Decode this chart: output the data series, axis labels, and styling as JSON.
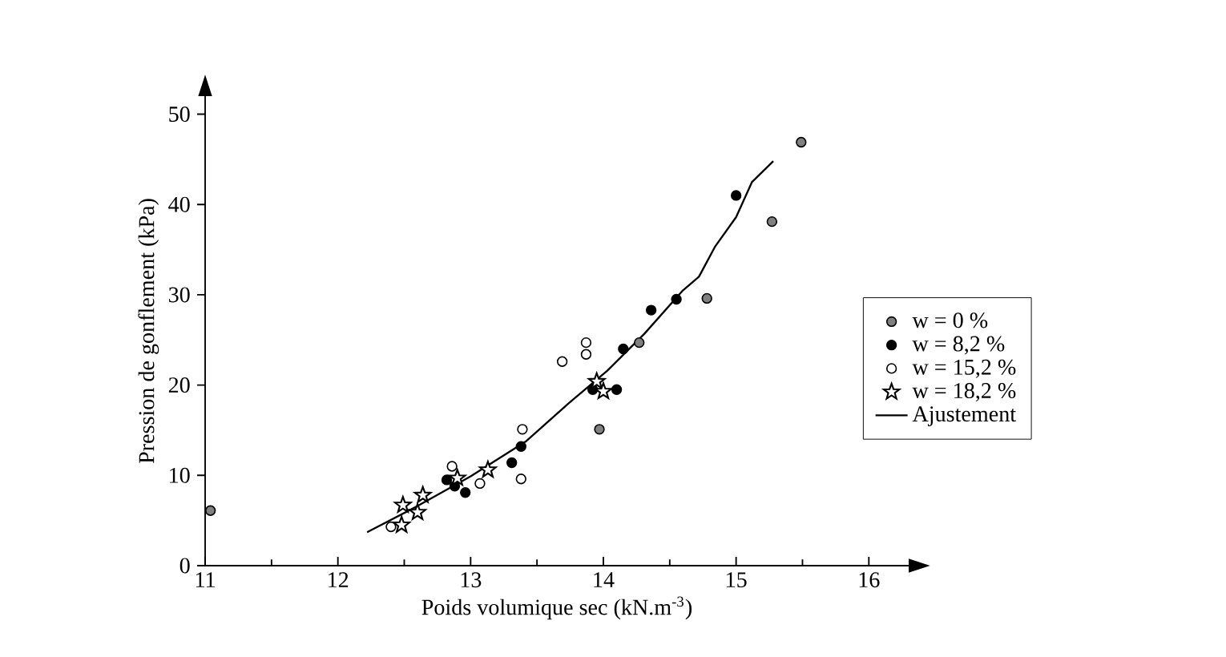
{
  "chart_data": {
    "type": "scatter",
    "xlabel": "Poids volumique sec (kN.m$^{-3}$)",
    "ylabel": "Pression de gonflement (kPa)",
    "xlim": [
      11,
      16.3
    ],
    "xticks": [
      11,
      12,
      13,
      14,
      15,
      16
    ],
    "ylim": [
      0,
      52
    ],
    "yticks": [
      0,
      10,
      20,
      30,
      40,
      50
    ],
    "legend": "right",
    "grid": false,
    "series": [
      {
        "name": "w = 0 %",
        "color": "#808080",
        "marker": "circle",
        "x": [
          11.04,
          13.97,
          14.27,
          14.78,
          15.27,
          15.49
        ],
        "values": [
          6.1,
          15.1,
          24.7,
          29.6,
          38.1,
          46.9
        ]
      },
      {
        "name": "w = 8,2 %",
        "color": "#000000",
        "marker": "circle",
        "x": [
          12.82,
          12.88,
          12.96,
          13.31,
          13.38,
          13.92,
          14.1,
          14.15,
          14.36,
          14.55,
          15.0
        ],
        "values": [
          9.5,
          8.8,
          8.1,
          11.4,
          13.2,
          19.5,
          19.5,
          24,
          28.3,
          29.5,
          41
        ]
      },
      {
        "name": "w = 15,2 %",
        "color": "#ffffff",
        "marker": "circle",
        "x": [
          12.4,
          12.86,
          13.07,
          13.38,
          13.39,
          13.69,
          13.87,
          13.87
        ],
        "values": [
          4.3,
          11,
          9.1,
          9.6,
          15.1,
          22.6,
          24.7,
          23.4
        ]
      },
      {
        "name": "w = 18,2 %",
        "color": "#ffffff",
        "marker": "star",
        "x": [
          12.48,
          12.49,
          12.6,
          12.64,
          12.9,
          13.13,
          13.95,
          14.0
        ],
        "values": [
          4.5,
          6.7,
          5.9,
          7.8,
          9.7,
          10.6,
          20.4,
          19.3
        ]
      },
      {
        "name": "Ajustement",
        "type": "line",
        "color": "#000000",
        "marker": "none",
        "x": [
          12.22,
          12.6,
          13.0,
          13.42,
          13.74,
          14.03,
          14.31,
          14.6,
          14.72,
          14.84,
          15.0,
          15.12,
          15.28
        ],
        "values": [
          3.7,
          6.6,
          9.9,
          13.8,
          18,
          21.6,
          25.7,
          30.5,
          32,
          35.3,
          38.6,
          42.5,
          44.8
        ]
      }
    ]
  }
}
